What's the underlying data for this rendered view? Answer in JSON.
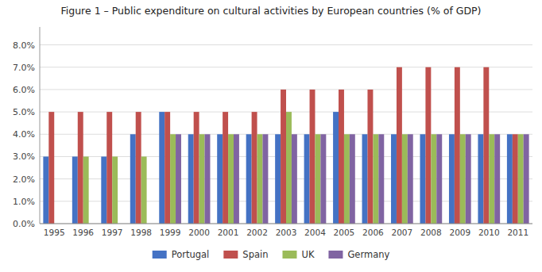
{
  "chart_data": {
    "type": "bar",
    "title": "Figure 1 – Public expenditure on cultural activities by European countries (% of GDP)",
    "categories": [
      "1995",
      "1996",
      "1997",
      "1998",
      "1999",
      "2000",
      "2001",
      "2002",
      "2003",
      "2004",
      "2005",
      "2006",
      "2007",
      "2008",
      "2009",
      "2010",
      "2011"
    ],
    "series": [
      {
        "name": "Portugal",
        "color": "#4472C4",
        "values": [
          0.03,
          0.03,
          0.03,
          0.04,
          0.05,
          0.04,
          0.04,
          0.04,
          0.04,
          0.04,
          0.05,
          0.04,
          0.04,
          0.04,
          0.04,
          0.04,
          0.04
        ]
      },
      {
        "name": "Spain",
        "color": "#C0504D",
        "values": [
          0.05,
          0.05,
          0.05,
          0.05,
          0.05,
          0.05,
          0.05,
          0.05,
          0.06,
          0.06,
          0.06,
          0.06,
          0.07,
          0.07,
          0.07,
          0.07,
          0.04
        ]
      },
      {
        "name": "UK",
        "color": "#9BBB59",
        "values": [
          null,
          0.03,
          0.03,
          0.03,
          0.04,
          0.04,
          0.04,
          0.04,
          0.05,
          0.04,
          0.04,
          0.04,
          0.04,
          0.04,
          0.04,
          0.04,
          0.04
        ]
      },
      {
        "name": "Germany",
        "color": "#8064A2",
        "values": [
          null,
          null,
          null,
          null,
          0.04,
          0.04,
          0.04,
          0.04,
          0.04,
          0.04,
          0.04,
          0.04,
          0.04,
          0.04,
          0.04,
          0.04,
          0.04
        ]
      }
    ],
    "ylim": [
      0.0,
      0.088
    ],
    "yticks": [
      {
        "value": 0.0,
        "label": "0.0%"
      },
      {
        "value": 0.01,
        "label": "1.0%"
      },
      {
        "value": 0.02,
        "label": "2.0%"
      },
      {
        "value": 0.03,
        "label": "3.0%"
      },
      {
        "value": 0.04,
        "label": "4.0%"
      },
      {
        "value": 0.05,
        "label": "5.0%"
      },
      {
        "value": 0.06,
        "label": "6.0%"
      },
      {
        "value": 0.07,
        "label": "7.0%"
      },
      {
        "value": 0.08,
        "label": "8.0%"
      }
    ],
    "grid": true,
    "legend": "bottom"
  }
}
